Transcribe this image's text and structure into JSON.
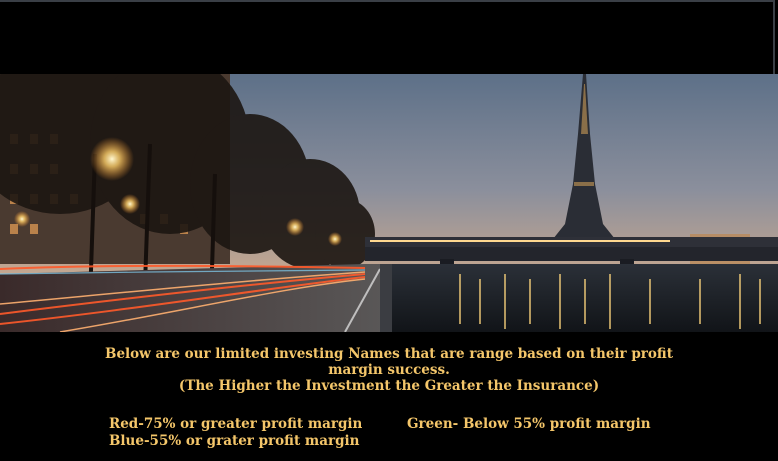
{
  "intro": {
    "line1": "Below are our limited investing Names that are range based on their profit",
    "line2": "margin success.",
    "line3": "(The Higher the Investment the Greater the Insurance)"
  },
  "legend": {
    "red": "Red-75% or greater profit margin",
    "blue": "Blue-55% or grater profit margin",
    "green": "Green- Below 55% profit margin"
  },
  "colors": {
    "caption_text": "#f4c66a",
    "background": "#000000"
  }
}
